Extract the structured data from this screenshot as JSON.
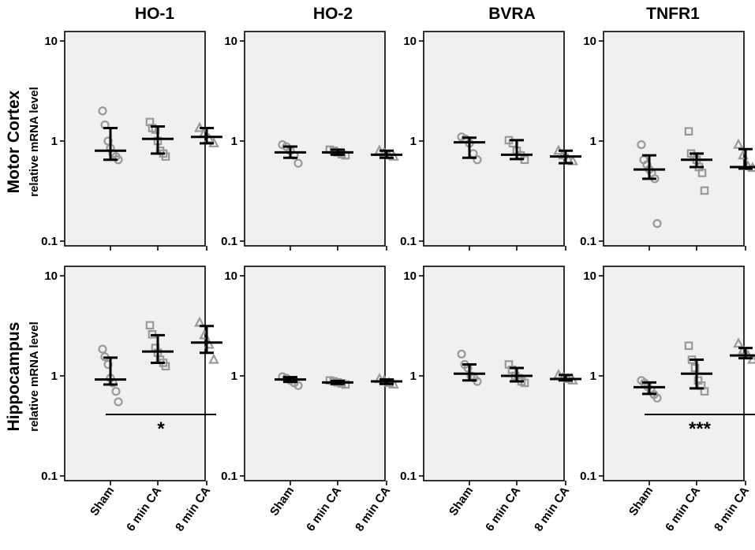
{
  "figure": {
    "columns": [
      "HO-1",
      "HO-2",
      "BVRA",
      "TNFR1"
    ],
    "rows": [
      {
        "title": "Motor Cortex",
        "ylabel": "relative mRNA level"
      },
      {
        "title": "Hippocampus",
        "ylabel": "relative mRNA level"
      }
    ],
    "categories": [
      "Sham",
      "6 min CA",
      "8 min CA"
    ],
    "yticks": [
      "10",
      "1",
      "0.1"
    ],
    "colors": {
      "panel_bg": "#f0f0f0",
      "marker": "#999999",
      "summary": "#000000"
    }
  },
  "chart_data": [
    {
      "type": "scatter",
      "title": "HO-1",
      "row": "Motor Cortex",
      "ylabel": "relative mRNA level",
      "yscale": "log",
      "ylim": [
        0.1,
        10
      ],
      "categories": [
        "Sham",
        "6 min CA",
        "8 min CA"
      ],
      "series": [
        {
          "name": "Sham",
          "marker": "circle",
          "points": [
            2.0,
            1.45,
            1.0,
            0.85,
            0.75,
            0.7,
            0.65
          ],
          "median": 0.8,
          "ci": [
            0.65,
            1.35
          ]
        },
        {
          "name": "6 min CA",
          "marker": "square",
          "points": [
            1.55,
            1.35,
            1.3,
            1.0,
            0.8,
            0.75,
            0.7
          ],
          "median": 1.05,
          "ci": [
            0.75,
            1.4
          ]
        },
        {
          "name": "8 min CA",
          "marker": "triangle",
          "points": [
            1.35,
            1.2,
            1.05,
            0.95
          ],
          "median": 1.1,
          "ci": [
            0.95,
            1.35
          ]
        }
      ]
    },
    {
      "type": "scatter",
      "title": "HO-2",
      "row": "Motor Cortex",
      "ylabel": "relative mRNA level",
      "yscale": "log",
      "ylim": [
        0.1,
        10
      ],
      "categories": [
        "Sham",
        "6 min CA",
        "8 min CA"
      ],
      "series": [
        {
          "name": "Sham",
          "marker": "circle",
          "points": [
            0.92,
            0.88,
            0.8,
            0.72,
            0.6
          ],
          "median": 0.77,
          "ci": [
            0.68,
            0.88
          ]
        },
        {
          "name": "6 min CA",
          "marker": "square",
          "points": [
            0.82,
            0.8,
            0.77,
            0.74,
            0.72
          ],
          "median": 0.77,
          "ci": [
            0.73,
            0.82
          ]
        },
        {
          "name": "8 min CA",
          "marker": "triangle",
          "points": [
            0.8,
            0.76,
            0.72,
            0.7
          ],
          "median": 0.73,
          "ci": [
            0.68,
            0.8
          ]
        }
      ]
    },
    {
      "type": "scatter",
      "title": "BVRA",
      "row": "Motor Cortex",
      "ylabel": "relative mRNA level",
      "yscale": "log",
      "ylim": [
        0.1,
        10
      ],
      "categories": [
        "Sham",
        "6 min CA",
        "8 min CA"
      ],
      "series": [
        {
          "name": "Sham",
          "marker": "circle",
          "points": [
            1.1,
            1.05,
            0.95,
            0.75,
            0.65
          ],
          "median": 0.97,
          "ci": [
            0.68,
            1.08
          ]
        },
        {
          "name": "6 min CA",
          "marker": "square",
          "points": [
            1.02,
            0.95,
            0.8,
            0.72,
            0.65
          ],
          "median": 0.73,
          "ci": [
            0.66,
            1.02
          ]
        },
        {
          "name": "8 min CA",
          "marker": "triangle",
          "points": [
            0.8,
            0.72,
            0.66,
            0.63
          ],
          "median": 0.7,
          "ci": [
            0.6,
            0.8
          ]
        }
      ]
    },
    {
      "type": "scatter",
      "title": "TNFR1",
      "row": "Motor Cortex",
      "ylabel": "relative mRNA level",
      "yscale": "log",
      "ylim": [
        0.1,
        10
      ],
      "categories": [
        "Sham",
        "6 min CA",
        "8 min CA"
      ],
      "series": [
        {
          "name": "Sham",
          "marker": "circle",
          "points": [
            0.92,
            0.65,
            0.58,
            0.52,
            0.48,
            0.42,
            0.15
          ],
          "median": 0.52,
          "ci": [
            0.42,
            0.72
          ]
        },
        {
          "name": "6 min CA",
          "marker": "square",
          "points": [
            1.25,
            0.75,
            0.7,
            0.65,
            0.55,
            0.48,
            0.32
          ],
          "median": 0.65,
          "ci": [
            0.55,
            0.75
          ]
        },
        {
          "name": "8 min CA",
          "marker": "triangle",
          "points": [
            0.92,
            0.72,
            0.56,
            0.54
          ],
          "median": 0.55,
          "ci": [
            0.53,
            0.83
          ]
        }
      ]
    },
    {
      "type": "scatter",
      "title": "HO-1",
      "row": "Hippocampus",
      "ylabel": "relative mRNA level",
      "yscale": "log",
      "ylim": [
        0.1,
        10
      ],
      "categories": [
        "Sham",
        "6 min CA",
        "8 min CA"
      ],
      "series": [
        {
          "name": "Sham",
          "marker": "circle",
          "points": [
            1.85,
            1.55,
            1.3,
            0.95,
            0.85,
            0.7,
            0.55
          ],
          "median": 0.92,
          "ci": [
            0.82,
            1.52
          ]
        },
        {
          "name": "6 min CA",
          "marker": "square",
          "points": [
            3.2,
            2.6,
            1.9,
            1.7,
            1.45,
            1.35,
            1.25
          ],
          "median": 1.75,
          "ci": [
            1.35,
            2.55
          ]
        },
        {
          "name": "8 min CA",
          "marker": "triangle",
          "points": [
            3.4,
            2.55,
            2.05,
            1.45
          ],
          "median": 2.15,
          "ci": [
            1.7,
            3.15
          ]
        }
      ],
      "significance": {
        "label": "*",
        "from": "Sham",
        "to": "8 min CA"
      }
    },
    {
      "type": "scatter",
      "title": "HO-2",
      "row": "Hippocampus",
      "ylabel": "relative mRNA level",
      "yscale": "log",
      "ylim": [
        0.1,
        10
      ],
      "categories": [
        "Sham",
        "6 min CA",
        "8 min CA"
      ],
      "series": [
        {
          "name": "Sham",
          "marker": "circle",
          "points": [
            0.98,
            0.95,
            0.9,
            0.85,
            0.8
          ],
          "median": 0.92,
          "ci": [
            0.87,
            0.97
          ]
        },
        {
          "name": "6 min CA",
          "marker": "square",
          "points": [
            0.9,
            0.88,
            0.86,
            0.84,
            0.82
          ],
          "median": 0.86,
          "ci": [
            0.83,
            0.89
          ]
        },
        {
          "name": "8 min CA",
          "marker": "triangle",
          "points": [
            0.93,
            0.9,
            0.85,
            0.82
          ],
          "median": 0.88,
          "ci": [
            0.83,
            0.92
          ]
        }
      ]
    },
    {
      "type": "scatter",
      "title": "BVRA",
      "row": "Hippocampus",
      "ylabel": "relative mRNA level",
      "yscale": "log",
      "ylim": [
        0.1,
        10
      ],
      "categories": [
        "Sham",
        "6 min CA",
        "8 min CA"
      ],
      "series": [
        {
          "name": "Sham",
          "marker": "circle",
          "points": [
            1.65,
            1.3,
            1.2,
            1.0,
            0.95,
            0.88
          ],
          "median": 1.05,
          "ci": [
            0.9,
            1.3
          ]
        },
        {
          "name": "6 min CA",
          "marker": "square",
          "points": [
            1.3,
            1.15,
            1.0,
            0.95,
            0.88,
            0.85
          ],
          "median": 1.0,
          "ci": [
            0.88,
            1.2
          ]
        },
        {
          "name": "8 min CA",
          "marker": "triangle",
          "points": [
            1.02,
            0.97,
            0.93,
            0.9
          ],
          "median": 0.93,
          "ci": [
            0.9,
            1.02
          ]
        }
      ]
    },
    {
      "type": "scatter",
      "title": "TNFR1",
      "row": "Hippocampus",
      "ylabel": "relative mRNA level",
      "yscale": "log",
      "ylim": [
        0.1,
        10
      ],
      "categories": [
        "Sham",
        "6 min CA",
        "8 min CA"
      ],
      "series": [
        {
          "name": "Sham",
          "marker": "circle",
          "points": [
            0.9,
            0.85,
            0.78,
            0.72,
            0.65,
            0.6
          ],
          "median": 0.77,
          "ci": [
            0.66,
            0.86
          ]
        },
        {
          "name": "6 min CA",
          "marker": "square",
          "points": [
            2.0,
            1.45,
            1.2,
            0.9,
            0.8,
            0.7
          ],
          "median": 1.05,
          "ci": [
            0.75,
            1.45
          ]
        },
        {
          "name": "8 min CA",
          "marker": "triangle",
          "points": [
            2.1,
            1.8,
            1.6,
            1.45
          ],
          "median": 1.6,
          "ci": [
            1.5,
            1.9
          ]
        }
      ],
      "significance": {
        "label": "***",
        "from": "Sham",
        "to": "8 min CA"
      }
    }
  ]
}
